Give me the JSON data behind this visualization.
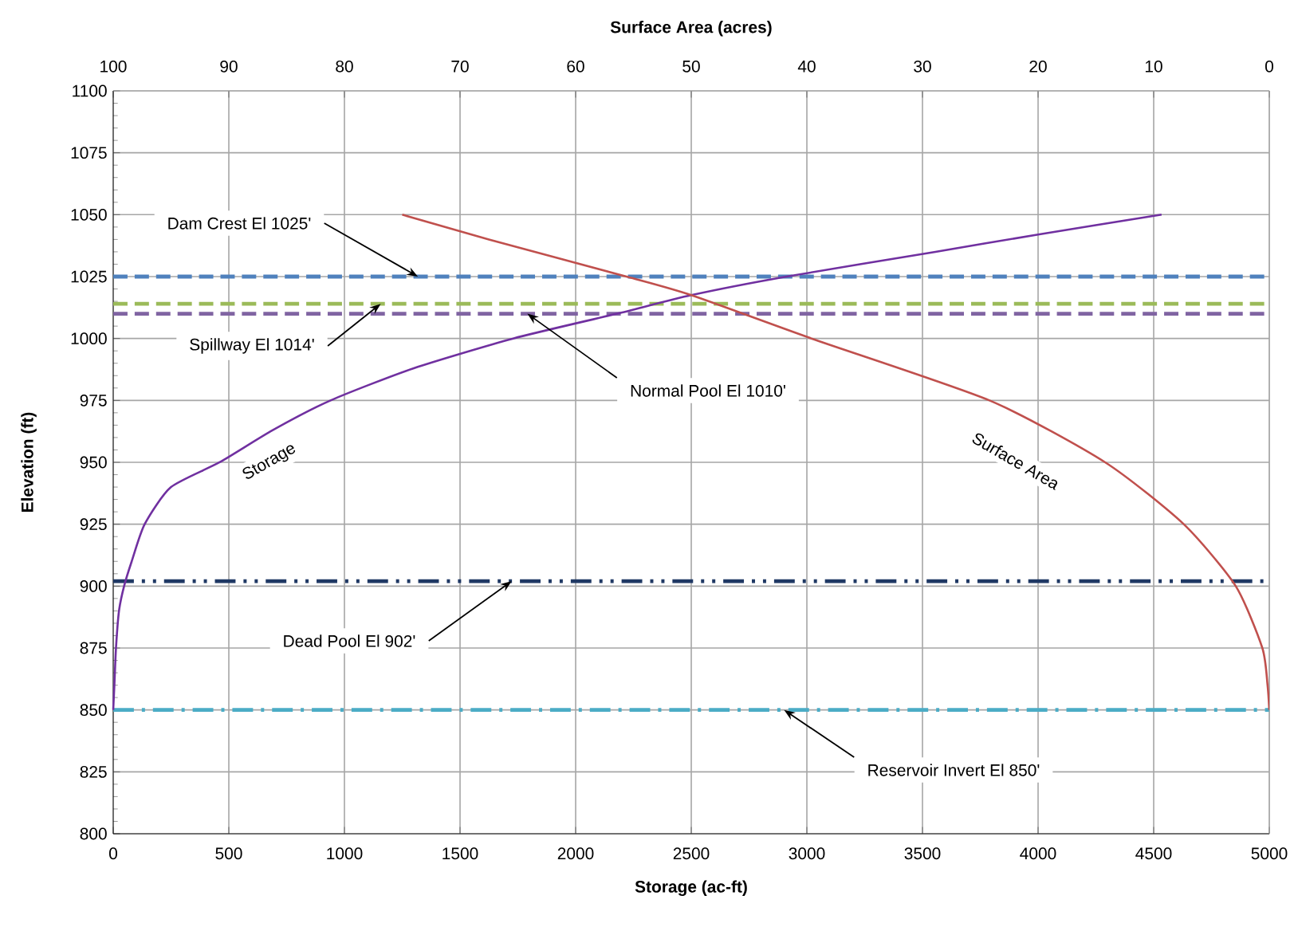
{
  "chart_data": {
    "type": "line",
    "xlabel": "Storage (ac-ft)",
    "x2label": "Surface Area (acres)",
    "ylabel": "Elevation (ft)",
    "xlim": [
      0,
      5000
    ],
    "xticks": [
      0,
      500,
      1000,
      1500,
      2000,
      2500,
      3000,
      3500,
      4000,
      4500,
      5000
    ],
    "x2lim": [
      100,
      0
    ],
    "x2ticks": [
      100,
      90,
      80,
      70,
      60,
      50,
      40,
      30,
      20,
      10,
      0
    ],
    "ylim": [
      800,
      1100
    ],
    "yticks": [
      800,
      825,
      850,
      875,
      900,
      925,
      950,
      975,
      1000,
      1025,
      1050,
      1075,
      1100
    ],
    "grid": true,
    "series": [
      {
        "name": "Storage",
        "color": "#7030a0",
        "x": [
          0,
          5,
          12,
          25,
          47,
          80,
          136,
          250,
          460,
          690,
          940,
          1300,
          1730,
          2178,
          2500,
          2912,
          3556,
          4000,
          4534
        ],
        "values": [
          850,
          860,
          875,
          890,
          900,
          910,
          925,
          940,
          950,
          963,
          975,
          988,
          1000,
          1010,
          1017.5,
          1025,
          1035,
          1042,
          1050
        ]
      },
      {
        "name": "Surface Area",
        "color": "#c0504d",
        "axis": "x2",
        "x": [
          0,
          0.15,
          0.6,
          2.9,
          7.4,
          14.2,
          24.2,
          39.6,
          50,
          55.6,
          67.5,
          75
        ],
        "values": [
          850,
          860,
          875,
          900,
          925,
          950,
          975,
          1000,
          1017.5,
          1025,
          1040,
          1050
        ]
      }
    ],
    "ref_lines": [
      {
        "axis": "y",
        "value": 1025,
        "color": "#4f81bd",
        "line_style": "dashed"
      },
      {
        "axis": "y",
        "value": 1014,
        "color": "#9bbb59",
        "line_style": "dashed"
      },
      {
        "axis": "y",
        "value": 1010,
        "color": "#8064a2",
        "line_style": "dashed"
      },
      {
        "axis": "y",
        "value": 902,
        "color": "#1f3864",
        "line_style": "dashdotdot"
      },
      {
        "axis": "y",
        "value": 850,
        "color": "#4bacc6",
        "line_style": "dashdot"
      }
    ],
    "annotations": [
      {
        "text": "Dam Crest El 1025'",
        "x": 1318,
        "y": 1025
      },
      {
        "text": "Spillway El 1014'",
        "x": 1157,
        "y": 1014
      },
      {
        "text": "Normal Pool El 1010'",
        "x": 1791,
        "y": 1010
      },
      {
        "text": "Dead Pool El 902'",
        "x": 1723,
        "y": 902
      },
      {
        "text": "Reservoir Invert El 850'",
        "x": 2901,
        "y": 850
      }
    ]
  }
}
